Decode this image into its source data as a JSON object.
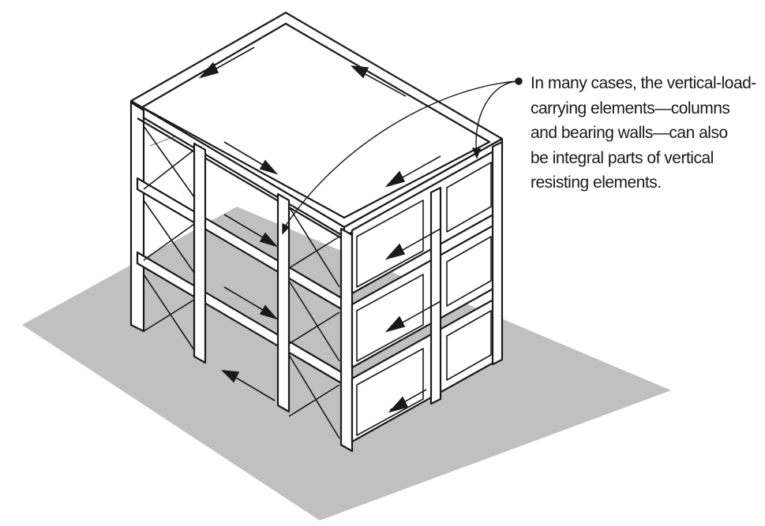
{
  "annotation": {
    "lines": [
      "In many cases, the vertical-load-",
      "carrying elements—columns",
      "and bearing walls—can also",
      "be integral parts of vertical",
      "resisting elements."
    ]
  },
  "colors": {
    "ground": "#c0c0c0",
    "structure": "#1a1a1a",
    "face": "#ffffff"
  }
}
